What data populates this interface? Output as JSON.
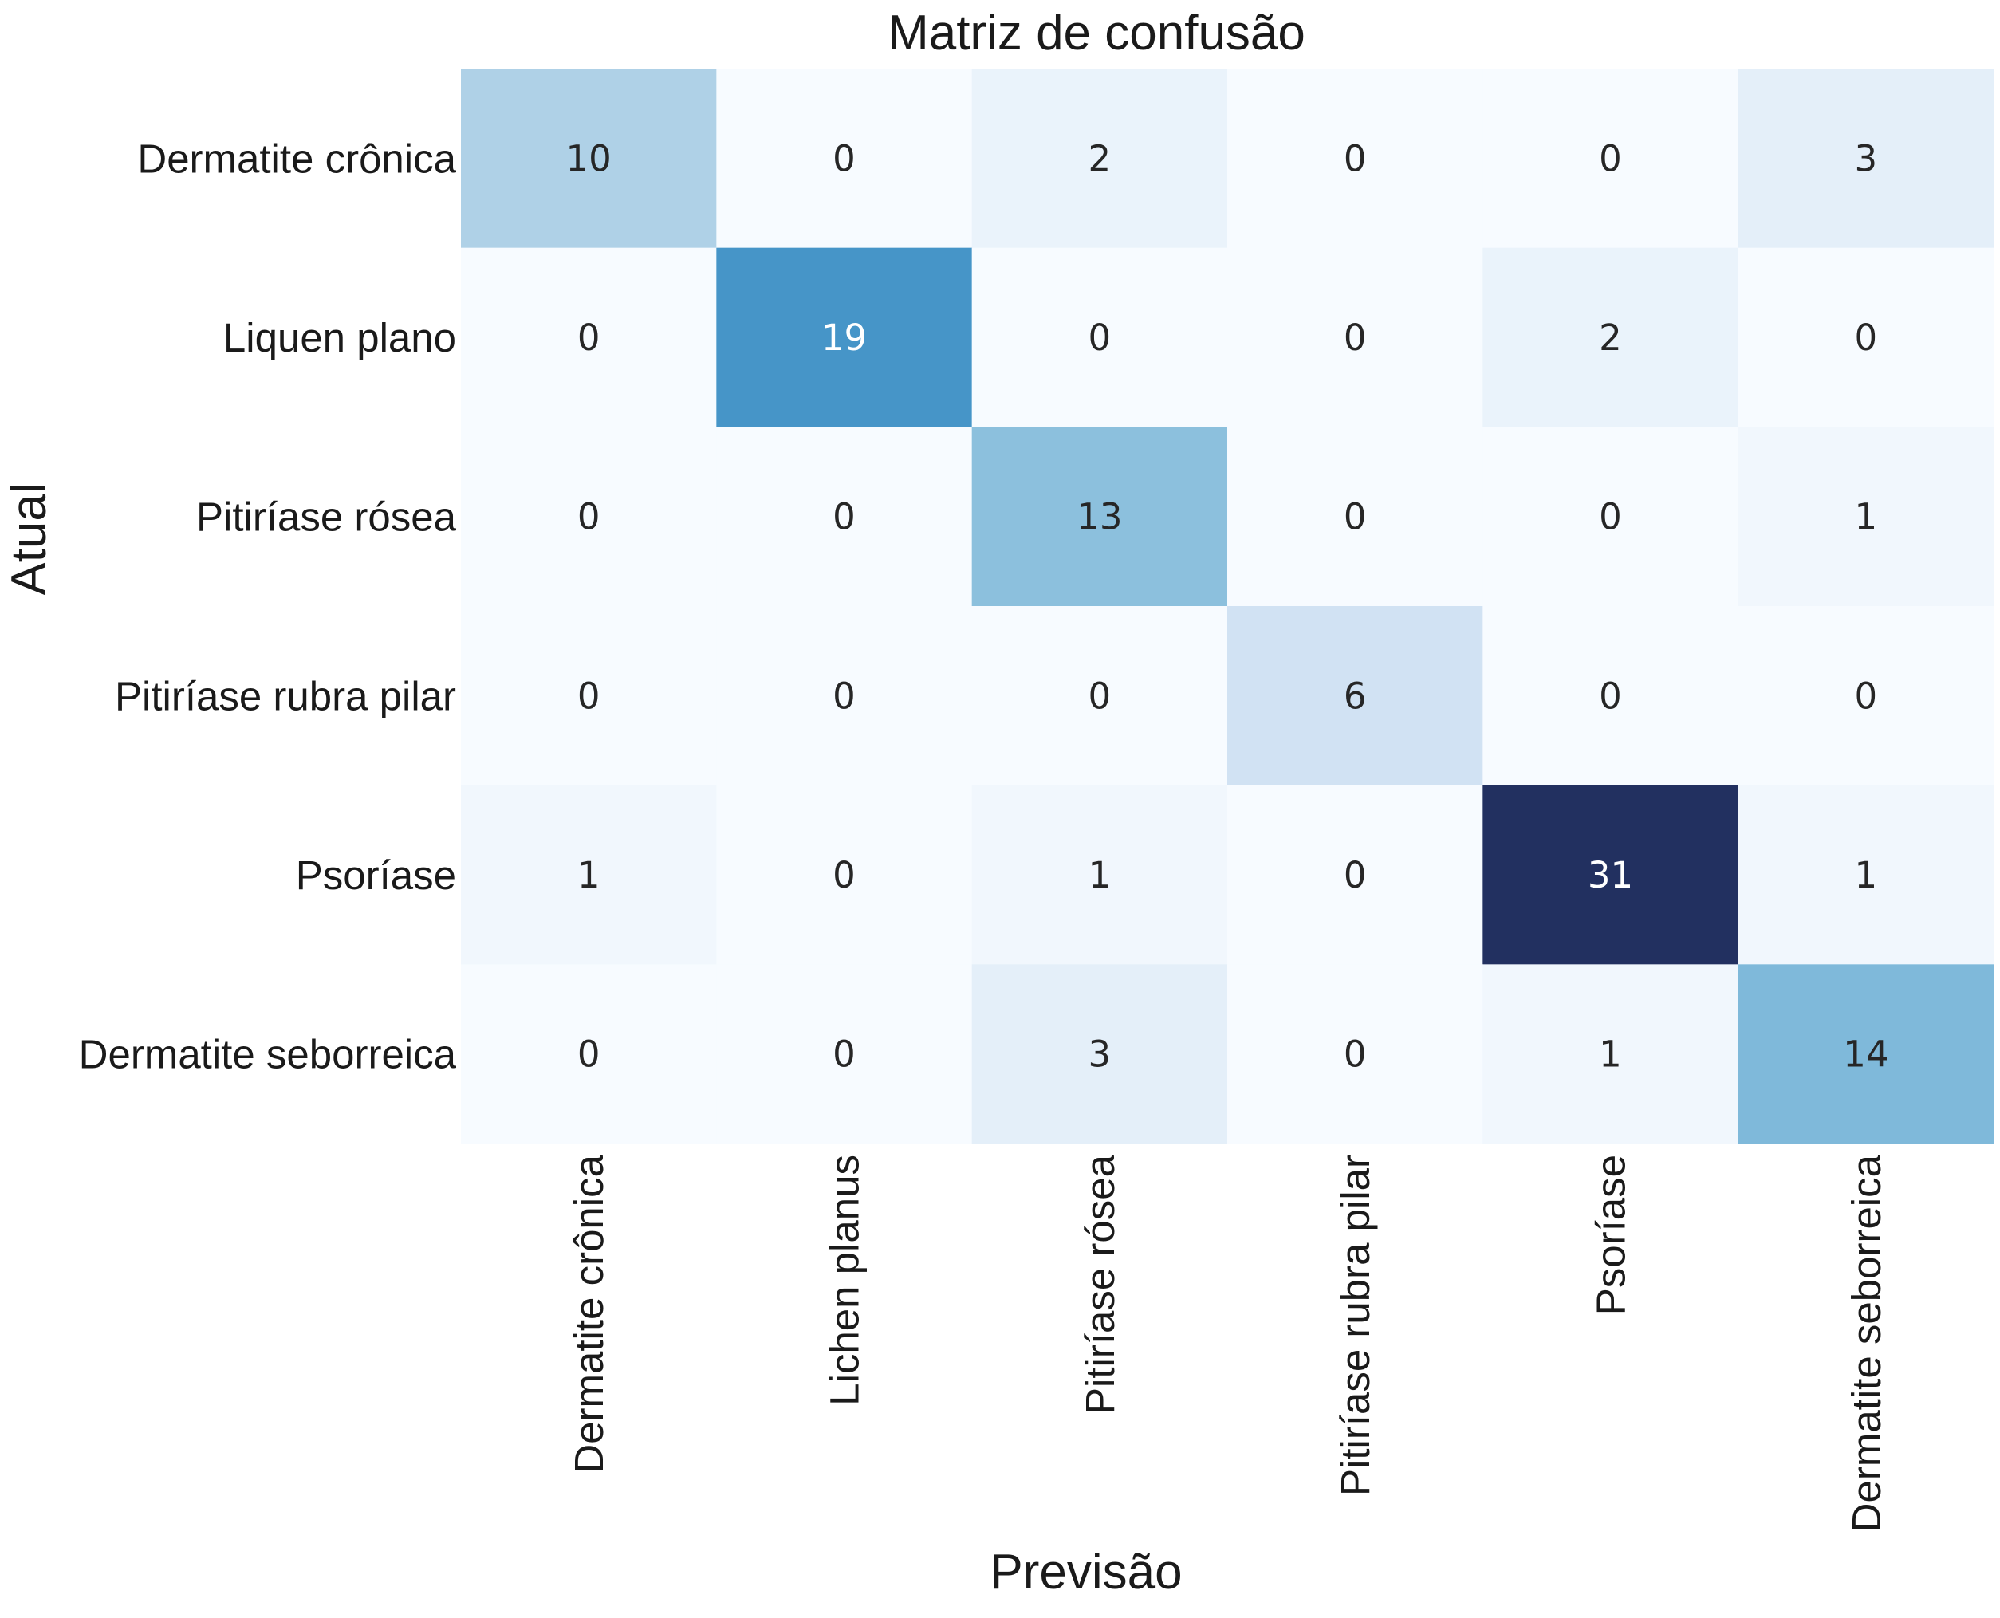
{
  "chart_data": {
    "type": "heatmap",
    "title": "Matriz de confusão",
    "xlabel": "Previsão",
    "ylabel": "Atual",
    "row_labels": [
      "Dermatite crônica",
      "Liquen plano",
      "Pitiríase rósea",
      "Pitiríase rubra pilar",
      "Psoríase",
      "Dermatite seborreica"
    ],
    "col_labels": [
      "Dermatite crônica",
      "Lichen planus",
      "Pitiríase rósea",
      "Pitiríase rubra pilar",
      "Psoríase",
      "Dermatite seborreica"
    ],
    "values": [
      [
        10,
        0,
        2,
        0,
        0,
        3
      ],
      [
        0,
        19,
        0,
        0,
        2,
        0
      ],
      [
        0,
        0,
        13,
        0,
        0,
        1
      ],
      [
        0,
        0,
        0,
        6,
        0,
        0
      ],
      [
        1,
        0,
        1,
        0,
        31,
        1
      ],
      [
        0,
        0,
        3,
        0,
        1,
        14
      ]
    ],
    "colormap": "Blues",
    "value_range": [
      0,
      31
    ],
    "colorbar": false
  }
}
